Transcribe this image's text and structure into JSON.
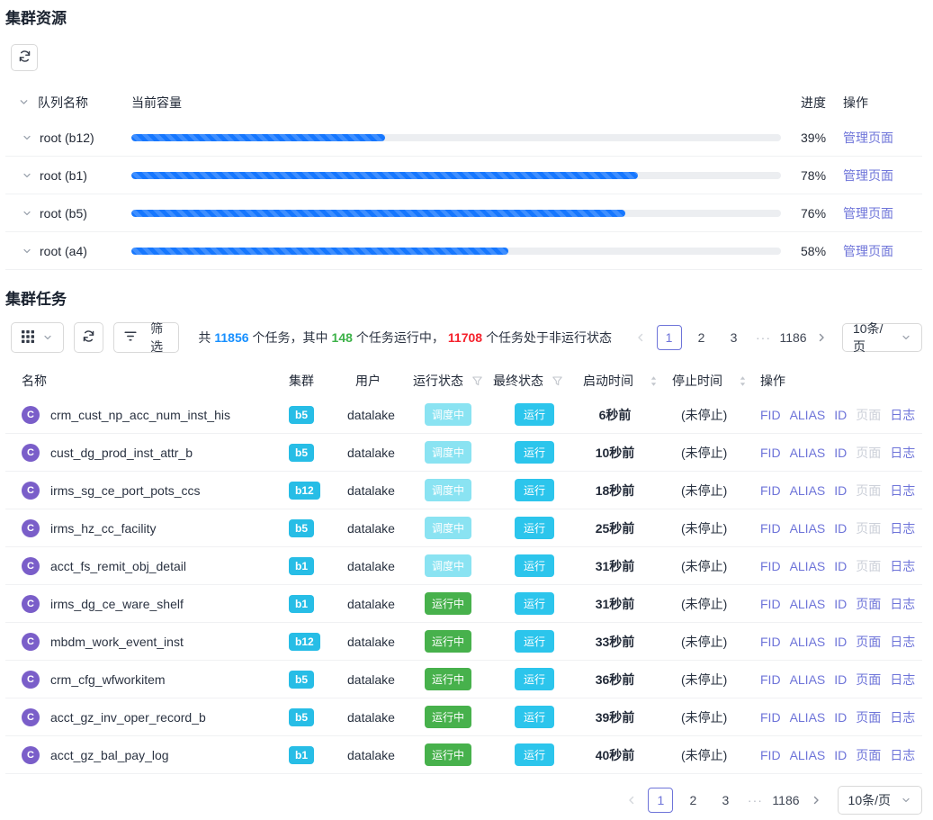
{
  "resources": {
    "title": "集群资源",
    "columns": {
      "queue": "队列名称",
      "capacity": "当前容量",
      "progress": "进度",
      "action": "操作"
    },
    "rows": [
      {
        "queue": "root (b12)",
        "percent": 39,
        "percent_label": "39%",
        "action": "管理页面"
      },
      {
        "queue": "root (b1)",
        "percent": 78,
        "percent_label": "78%",
        "action": "管理页面"
      },
      {
        "queue": "root (b5)",
        "percent": 76,
        "percent_label": "76%",
        "action": "管理页面"
      },
      {
        "queue": "root (a4)",
        "percent": 58,
        "percent_label": "58%",
        "action": "管理页面"
      }
    ]
  },
  "tasks": {
    "title": "集群任务",
    "toolbar": {
      "filter_label": "筛选",
      "summary": {
        "p1": "共",
        "total": "11856",
        "p2": "个任务，其中",
        "running": "148",
        "p3": "个任务运行中，",
        "nonrunning": "11708",
        "p4": "个任务处于非运行状态"
      }
    },
    "pagination": {
      "page1": "1",
      "page2": "2",
      "page3": "3",
      "ellipsis": "···",
      "last_page": "1186",
      "page_size": "10条/页"
    },
    "columns": {
      "name": "名称",
      "cluster": "集群",
      "user": "用户",
      "run_status": "运行状态",
      "final_status": "最终状态",
      "start_time": "启动时间",
      "stop_time": "停止时间",
      "ops": "操作"
    },
    "ops": {
      "fid": "FID",
      "alias": "ALIAS",
      "id": "ID",
      "page": "页面",
      "log": "日志"
    },
    "rows": [
      {
        "avatar": "C",
        "name": "crm_cust_np_acc_num_inst_his",
        "cluster": "b5",
        "user": "datalake",
        "run_status": "调度中",
        "run_state": "scheduling",
        "final_status": "运行",
        "start_time": "6秒前",
        "stop_time": "(未停止)",
        "page_enabled": false
      },
      {
        "avatar": "C",
        "name": "cust_dg_prod_inst_attr_b",
        "cluster": "b5",
        "user": "datalake",
        "run_status": "调度中",
        "run_state": "scheduling",
        "final_status": "运行",
        "start_time": "10秒前",
        "stop_time": "(未停止)",
        "page_enabled": false
      },
      {
        "avatar": "C",
        "name": "irms_sg_ce_port_pots_ccs",
        "cluster": "b12",
        "user": "datalake",
        "run_status": "调度中",
        "run_state": "scheduling",
        "final_status": "运行",
        "start_time": "18秒前",
        "stop_time": "(未停止)",
        "page_enabled": false
      },
      {
        "avatar": "C",
        "name": "irms_hz_cc_facility",
        "cluster": "b5",
        "user": "datalake",
        "run_status": "调度中",
        "run_state": "scheduling",
        "final_status": "运行",
        "start_time": "25秒前",
        "stop_time": "(未停止)",
        "page_enabled": false
      },
      {
        "avatar": "C",
        "name": "acct_fs_remit_obj_detail",
        "cluster": "b1",
        "user": "datalake",
        "run_status": "调度中",
        "run_state": "scheduling",
        "final_status": "运行",
        "start_time": "31秒前",
        "stop_time": "(未停止)",
        "page_enabled": false
      },
      {
        "avatar": "C",
        "name": "irms_dg_ce_ware_shelf",
        "cluster": "b1",
        "user": "datalake",
        "run_status": "运行中",
        "run_state": "running",
        "final_status": "运行",
        "start_time": "31秒前",
        "stop_time": "(未停止)",
        "page_enabled": true
      },
      {
        "avatar": "C",
        "name": "mbdm_work_event_inst",
        "cluster": "b12",
        "user": "datalake",
        "run_status": "运行中",
        "run_state": "running",
        "final_status": "运行",
        "start_time": "33秒前",
        "stop_time": "(未停止)",
        "page_enabled": true
      },
      {
        "avatar": "C",
        "name": "crm_cfg_wfworkitem",
        "cluster": "b5",
        "user": "datalake",
        "run_status": "运行中",
        "run_state": "running",
        "final_status": "运行",
        "start_time": "36秒前",
        "stop_time": "(未停止)",
        "page_enabled": true
      },
      {
        "avatar": "C",
        "name": "acct_gz_inv_oper_record_b",
        "cluster": "b5",
        "user": "datalake",
        "run_status": "运行中",
        "run_state": "running",
        "final_status": "运行",
        "start_time": "39秒前",
        "stop_time": "(未停止)",
        "page_enabled": true
      },
      {
        "avatar": "C",
        "name": "acct_gz_bal_pay_log",
        "cluster": "b1",
        "user": "datalake",
        "run_status": "运行中",
        "run_state": "running",
        "final_status": "运行",
        "start_time": "40秒前",
        "stop_time": "(未停止)",
        "page_enabled": true
      }
    ]
  },
  "colors": {
    "progress_blue": "#1677ff",
    "link_purple": "#6e74d9",
    "count_blue": "#1890ff",
    "count_green": "#3db249",
    "count_red": "#f5222d",
    "badge_cyan": "#27bde6",
    "badge_scheduling": "#8ae3f2",
    "badge_running": "#47b14c",
    "badge_final": "#2cc5ec",
    "avatar_purple": "#7a5ec9"
  }
}
